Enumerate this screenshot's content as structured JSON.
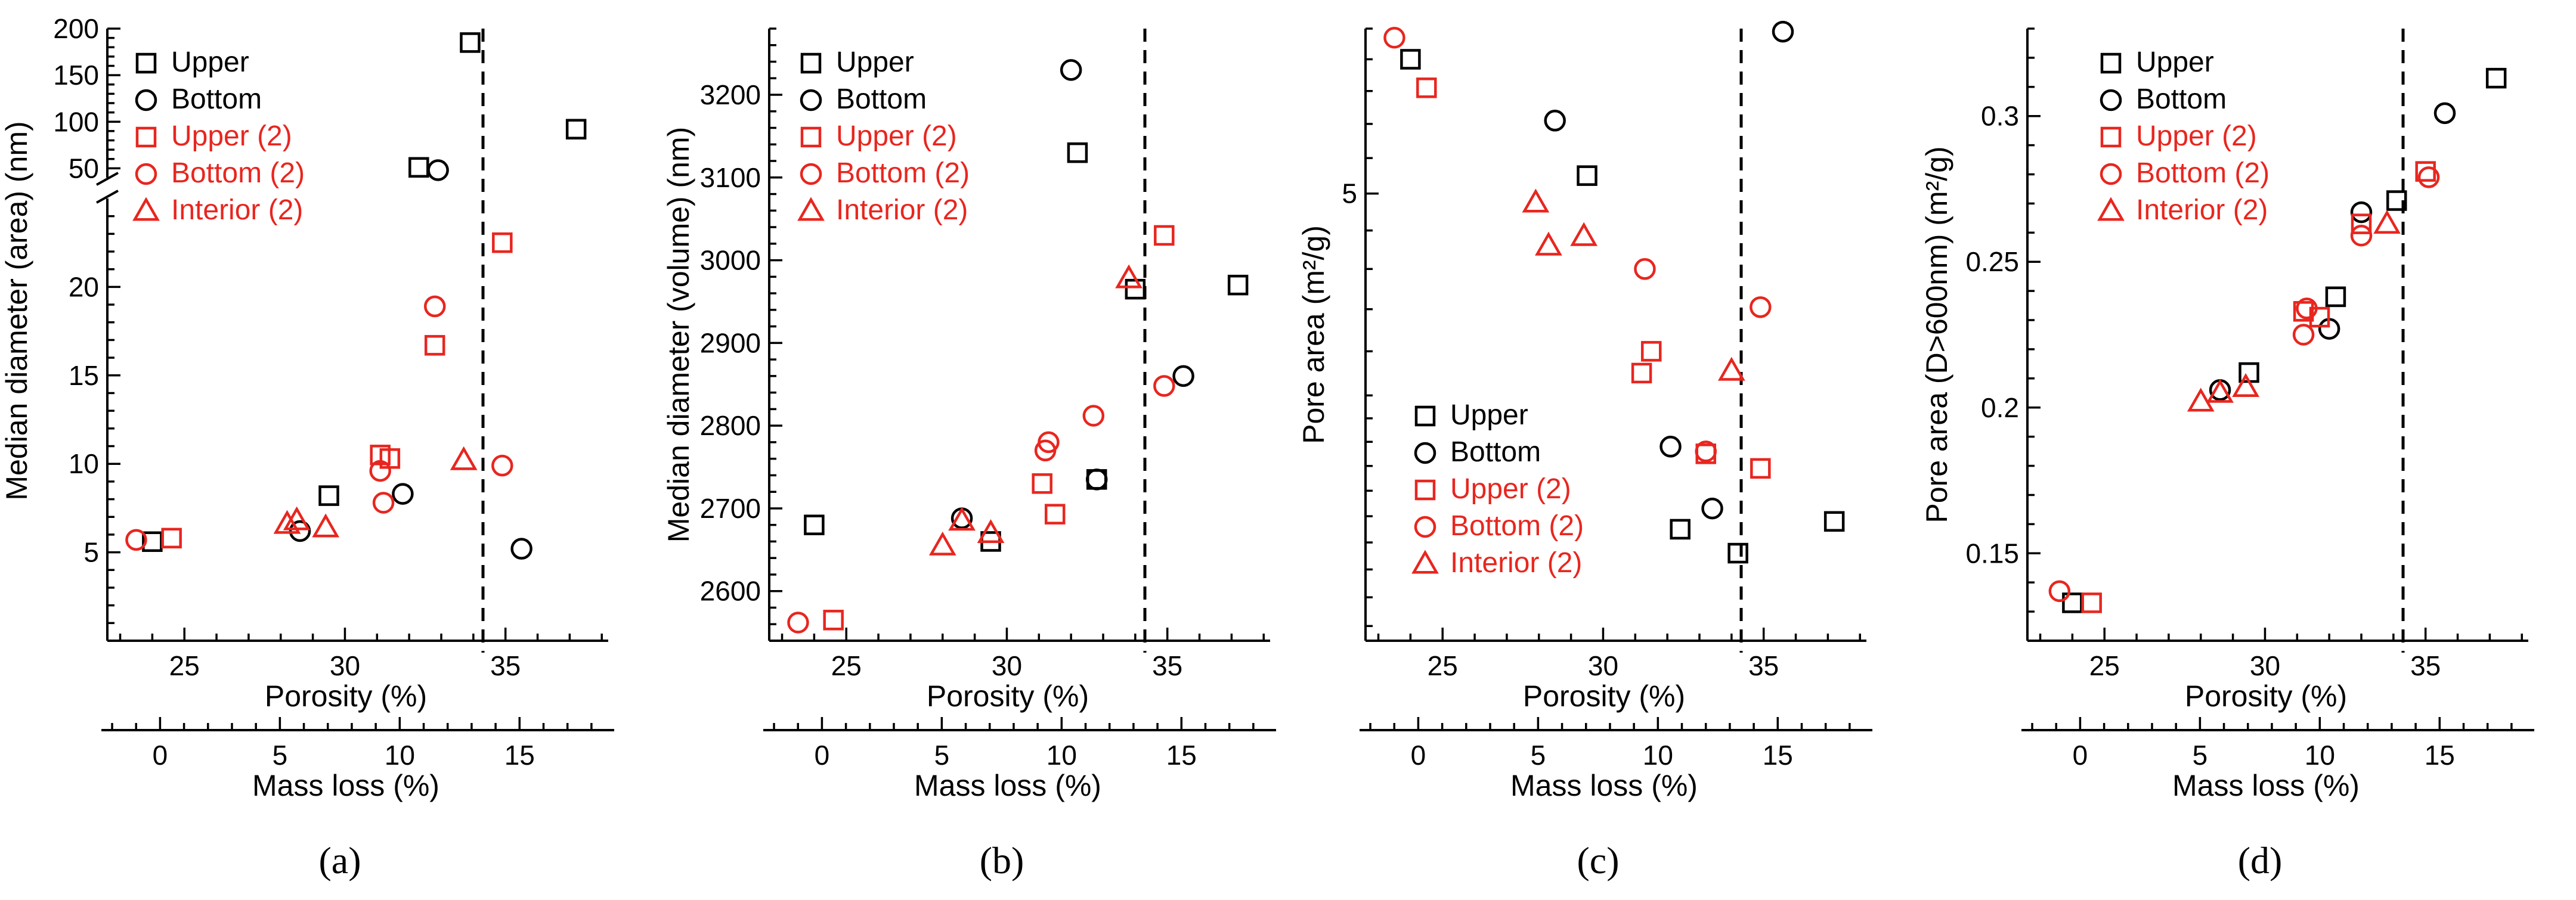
{
  "colors": {
    "upper": "#000000",
    "bottom": "#000000",
    "red": "#e8261f"
  },
  "legend_labels": [
    "Upper",
    "Bottom",
    "Upper (2)",
    "Bottom (2)",
    "Interior (2)"
  ],
  "chart_data": [
    {
      "type": "scatter",
      "panel_label": "(a)",
      "ylabel": "Median diameter (area) (nm)",
      "xlabel": "Porosity (%)",
      "x2label": "Mass loss (%)",
      "xlim": [
        22.6,
        38.2
      ],
      "x2lim": [
        -2.2,
        18.7
      ],
      "xticks": [
        25,
        30,
        35
      ],
      "x2ticks": [
        0,
        5,
        10,
        15
      ],
      "yscale": "broken",
      "ylim_lower": [
        0,
        25
      ],
      "ylim_upper": [
        40,
        200
      ],
      "yticks_lower": [
        5,
        10,
        15,
        20
      ],
      "yticks_upper": [
        50,
        100,
        150,
        200
      ],
      "divider_x": 34.3,
      "series": [
        {
          "name": "Upper",
          "marker": "square",
          "color": "black",
          "points": [
            [
              24.0,
              5.6
            ],
            [
              29.5,
              8.2
            ],
            [
              32.3,
              51
            ],
            [
              33.9,
              185
            ],
            [
              37.2,
              92
            ]
          ]
        },
        {
          "name": "Bottom",
          "marker": "circle",
          "color": "black",
          "points": [
            [
              28.6,
              6.2
            ],
            [
              31.8,
              8.3
            ],
            [
              32.9,
              48
            ],
            [
              35.5,
              5.2
            ]
          ]
        },
        {
          "name": "Upper (2)",
          "marker": "square",
          "color": "red",
          "points": [
            [
              24.6,
              5.8
            ],
            [
              31.1,
              10.5
            ],
            [
              31.4,
              10.3
            ],
            [
              32.8,
              16.7
            ],
            [
              34.9,
              22.5
            ]
          ]
        },
        {
          "name": "Bottom (2)",
          "marker": "circle",
          "color": "red",
          "points": [
            [
              23.5,
              5.7
            ],
            [
              31.1,
              9.6
            ],
            [
              31.2,
              7.8
            ],
            [
              32.8,
              18.9
            ],
            [
              34.9,
              9.9
            ]
          ]
        },
        {
          "name": "Interior (2)",
          "marker": "triangle",
          "color": "red",
          "points": [
            [
              28.2,
              6.6
            ],
            [
              28.5,
              6.8
            ],
            [
              29.4,
              6.4
            ],
            [
              33.7,
              10.2
            ]
          ]
        }
      ]
    },
    {
      "type": "scatter",
      "panel_label": "(b)",
      "ylabel": "Median diameter (volume) (nm)",
      "xlabel": "Porosity (%)",
      "x2label": "Mass loss (%)",
      "xlim": [
        22.6,
        38.2
      ],
      "x2lim": [
        -2.2,
        18.7
      ],
      "xticks": [
        25,
        30,
        35
      ],
      "x2ticks": [
        0,
        5,
        10,
        15
      ],
      "yscale": "linear",
      "ylim": [
        2540,
        3280
      ],
      "yticks": [
        2600,
        2700,
        2800,
        2900,
        3000,
        3100,
        3200
      ],
      "divider_x": 34.3,
      "series": [
        {
          "name": "Upper",
          "marker": "square",
          "color": "black",
          "points": [
            [
              24.0,
              2680
            ],
            [
              29.5,
              2660
            ],
            [
              32.2,
              3130
            ],
            [
              32.8,
              2735
            ],
            [
              34.0,
              2965
            ],
            [
              37.2,
              2970
            ]
          ]
        },
        {
          "name": "Bottom",
          "marker": "circle",
          "color": "black",
          "points": [
            [
              28.6,
              2688
            ],
            [
              32.0,
              3230
            ],
            [
              32.8,
              2735
            ],
            [
              35.5,
              2860
            ]
          ]
        },
        {
          "name": "Upper (2)",
          "marker": "square",
          "color": "red",
          "points": [
            [
              24.6,
              2565
            ],
            [
              31.1,
              2730
            ],
            [
              31.5,
              2693
            ],
            [
              34.9,
              3030
            ]
          ]
        },
        {
          "name": "Bottom (2)",
          "marker": "circle",
          "color": "red",
          "points": [
            [
              23.5,
              2562
            ],
            [
              31.2,
              2770
            ],
            [
              31.3,
              2780
            ],
            [
              32.7,
              2812
            ],
            [
              34.9,
              2848
            ]
          ]
        },
        {
          "name": "Interior (2)",
          "marker": "triangle",
          "color": "red",
          "points": [
            [
              28.0,
              2655
            ],
            [
              28.6,
              2685
            ],
            [
              29.5,
              2670
            ],
            [
              33.8,
              2978
            ]
          ]
        }
      ]
    },
    {
      "type": "scatter",
      "panel_label": "(c)",
      "ylabel": "Pore area (m²/g)",
      "xlabel": "Porosity (%)",
      "x2label": "Mass loss (%)",
      "xlim": [
        22.6,
        38.2
      ],
      "x2lim": [
        -2.2,
        18.7
      ],
      "xticks": [
        25,
        30,
        35
      ],
      "x2ticks": [
        0,
        5,
        10,
        15
      ],
      "yscale": "log",
      "ylim": [
        3.05,
        6.0
      ],
      "yticks": [
        5
      ],
      "divider_x": 34.3,
      "series": [
        {
          "name": "Upper",
          "marker": "square",
          "color": "black",
          "points": [
            [
              24.0,
              5.8
            ],
            [
              29.5,
              5.1
            ],
            [
              32.4,
              3.45
            ],
            [
              34.2,
              3.36
            ],
            [
              37.2,
              3.48
            ]
          ]
        },
        {
          "name": "Bottom",
          "marker": "circle",
          "color": "black",
          "points": [
            [
              28.5,
              5.42
            ],
            [
              32.1,
              3.78
            ],
            [
              33.4,
              3.53
            ],
            [
              35.6,
              5.98
            ]
          ]
        },
        {
          "name": "Upper (2)",
          "marker": "square",
          "color": "red",
          "points": [
            [
              24.5,
              5.62
            ],
            [
              31.2,
              4.1
            ],
            [
              31.5,
              4.2
            ],
            [
              33.2,
              3.75
            ],
            [
              34.9,
              3.69
            ]
          ]
        },
        {
          "name": "Bottom (2)",
          "marker": "circle",
          "color": "red",
          "points": [
            [
              23.5,
              5.94
            ],
            [
              31.3,
              4.6
            ],
            [
              33.2,
              3.76
            ],
            [
              34.9,
              4.41
            ]
          ]
        },
        {
          "name": "Interior (2)",
          "marker": "triangle",
          "color": "red",
          "points": [
            [
              27.9,
              4.95
            ],
            [
              28.3,
              4.72
            ],
            [
              29.4,
              4.77
            ],
            [
              34.0,
              4.11
            ]
          ]
        }
      ]
    },
    {
      "type": "scatter",
      "panel_label": "(d)",
      "ylabel": "Pore area (D>600nm) (m²/g)",
      "xlabel": "Porosity (%)",
      "x2label": "Mass loss (%)",
      "xlim": [
        22.6,
        38.2
      ],
      "x2lim": [
        -2.2,
        18.7
      ],
      "xticks": [
        25,
        30,
        35
      ],
      "x2ticks": [
        0,
        5,
        10,
        15
      ],
      "yscale": "linear",
      "ylim": [
        0.12,
        0.33
      ],
      "yticks": [
        0.15,
        0.2,
        0.25,
        0.3
      ],
      "divider_x": 34.3,
      "series": [
        {
          "name": "Upper",
          "marker": "square",
          "color": "black",
          "points": [
            [
              24.0,
              0.133
            ],
            [
              29.5,
              0.212
            ],
            [
              32.2,
              0.238
            ],
            [
              34.1,
              0.271
            ],
            [
              37.2,
              0.313
            ]
          ]
        },
        {
          "name": "Bottom",
          "marker": "circle",
          "color": "black",
          "points": [
            [
              28.6,
              0.206
            ],
            [
              32.0,
              0.227
            ],
            [
              33.0,
              0.267
            ],
            [
              35.6,
              0.301
            ]
          ]
        },
        {
          "name": "Upper (2)",
          "marker": "square",
          "color": "red",
          "points": [
            [
              24.6,
              0.133
            ],
            [
              31.2,
              0.233
            ],
            [
              31.7,
              0.231
            ],
            [
              33.0,
              0.263
            ],
            [
              35.0,
              0.281
            ]
          ]
        },
        {
          "name": "Bottom (2)",
          "marker": "circle",
          "color": "red",
          "points": [
            [
              23.6,
              0.137
            ],
            [
              31.2,
              0.225
            ],
            [
              31.3,
              0.234
            ],
            [
              33.0,
              0.259
            ],
            [
              35.1,
              0.279
            ]
          ]
        },
        {
          "name": "Interior (2)",
          "marker": "triangle",
          "color": "red",
          "points": [
            [
              28.0,
              0.202
            ],
            [
              28.6,
              0.205
            ],
            [
              29.4,
              0.207
            ],
            [
              33.8,
              0.263
            ]
          ]
        }
      ]
    }
  ]
}
